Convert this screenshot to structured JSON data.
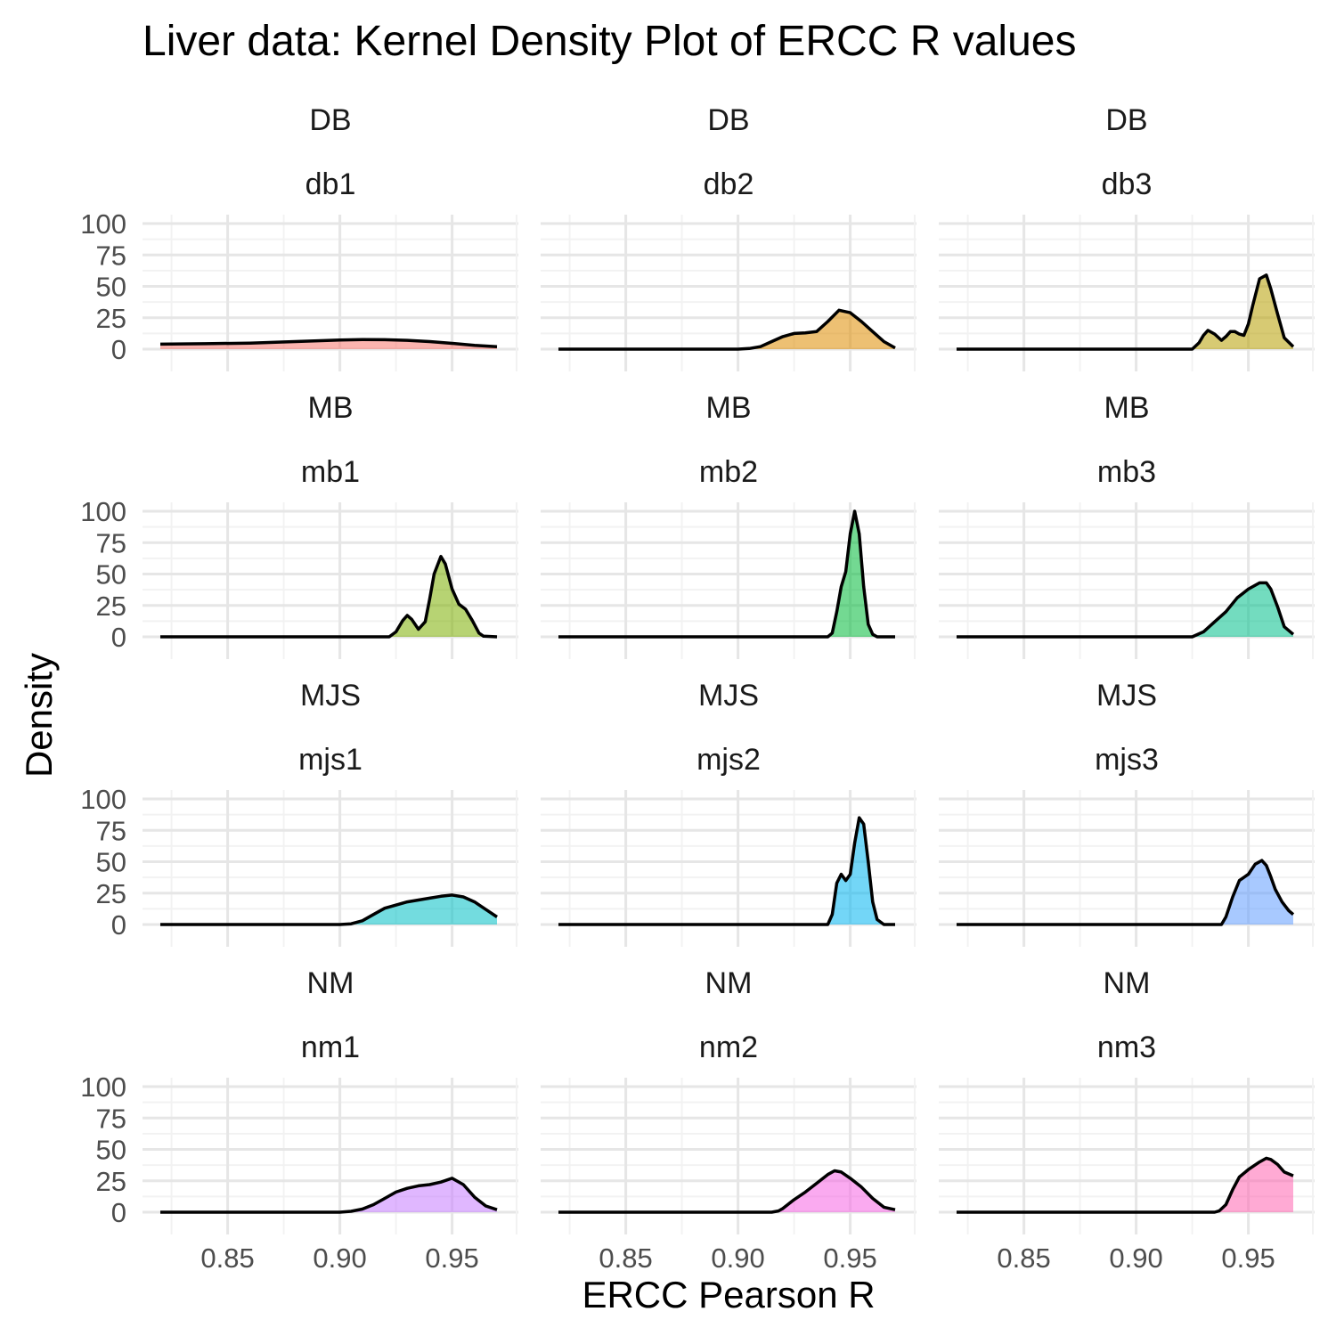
{
  "chart_data": {
    "type": "area",
    "title": "Liver data: Kernel Density Plot of ERCC R values",
    "xlabel": "ERCC Pearson R",
    "ylabel": "Density",
    "xlim": [
      0.82,
      0.97
    ],
    "ylim": [
      0,
      100
    ],
    "x_ticks": [
      0.85,
      0.9,
      0.95
    ],
    "x_tick_labels": [
      "0.85",
      "0.90",
      "0.95"
    ],
    "y_ticks": [
      0,
      25,
      50,
      75,
      100
    ],
    "y_tick_labels": [
      "0",
      "25",
      "50",
      "75",
      "100"
    ],
    "grid": true,
    "legend": "none",
    "panels": [
      {
        "group": "DB",
        "sample": "db1",
        "color": "#F8766D",
        "x": [
          0.82,
          0.84,
          0.86,
          0.88,
          0.9,
          0.91,
          0.92,
          0.93,
          0.94,
          0.95,
          0.96,
          0.97
        ],
        "y": [
          4,
          4.3,
          4.8,
          6,
          7.3,
          7.6,
          7.5,
          7,
          6,
          4.6,
          3,
          2
        ]
      },
      {
        "group": "DB",
        "sample": "db2",
        "color": "#DE8C00",
        "x": [
          0.82,
          0.9,
          0.905,
          0.91,
          0.915,
          0.92,
          0.925,
          0.93,
          0.935,
          0.94,
          0.945,
          0.95,
          0.955,
          0.96,
          0.965,
          0.97
        ],
        "y": [
          0,
          0,
          0.5,
          2,
          6,
          10,
          12.5,
          13,
          14,
          22,
          31,
          29,
          22,
          14,
          6,
          1
        ]
      },
      {
        "group": "DB",
        "sample": "db3",
        "color": "#B79F00",
        "x": [
          0.82,
          0.925,
          0.928,
          0.93,
          0.932,
          0.935,
          0.938,
          0.94,
          0.942,
          0.944,
          0.946,
          0.948,
          0.95,
          0.952,
          0.955,
          0.958,
          0.96,
          0.963,
          0.966,
          0.97
        ],
        "y": [
          0,
          0,
          5,
          11,
          15,
          12,
          7,
          10,
          14,
          14,
          12,
          11,
          20,
          35,
          56,
          59,
          48,
          28,
          9,
          2
        ]
      },
      {
        "group": "MB",
        "sample": "mb1",
        "color": "#7CAE00",
        "x": [
          0.82,
          0.922,
          0.925,
          0.928,
          0.93,
          0.932,
          0.935,
          0.938,
          0.94,
          0.942,
          0.945,
          0.947,
          0.95,
          0.953,
          0.956,
          0.959,
          0.962,
          0.964,
          0.97
        ],
        "y": [
          0,
          0,
          4,
          13,
          17,
          14,
          6,
          12,
          30,
          50,
          64,
          58,
          38,
          26,
          22,
          13,
          3,
          0.5,
          0
        ]
      },
      {
        "group": "MB",
        "sample": "mb2",
        "color": "#00BA38",
        "x": [
          0.82,
          0.94,
          0.942,
          0.944,
          0.946,
          0.948,
          0.95,
          0.952,
          0.954,
          0.956,
          0.958,
          0.96,
          0.962,
          0.97
        ],
        "y": [
          0,
          0,
          3,
          20,
          40,
          52,
          82,
          100,
          82,
          40,
          10,
          2,
          0,
          0
        ]
      },
      {
        "group": "MB",
        "sample": "mb3",
        "color": "#00C08B",
        "x": [
          0.82,
          0.925,
          0.93,
          0.935,
          0.94,
          0.945,
          0.95,
          0.955,
          0.958,
          0.96,
          0.963,
          0.966,
          0.97
        ],
        "y": [
          0,
          0,
          4,
          12,
          20,
          31,
          38,
          43,
          43,
          38,
          24,
          8,
          2
        ]
      },
      {
        "group": "MJS",
        "sample": "mjs1",
        "color": "#00BFC4",
        "x": [
          0.82,
          0.9,
          0.905,
          0.91,
          0.915,
          0.92,
          0.93,
          0.94,
          0.945,
          0.95,
          0.955,
          0.96,
          0.965,
          0.97
        ],
        "y": [
          0,
          0,
          0.6,
          3,
          8,
          13,
          18,
          21,
          22.5,
          23.5,
          22,
          18,
          12,
          6
        ]
      },
      {
        "group": "MJS",
        "sample": "mjs2",
        "color": "#00B4F0",
        "x": [
          0.82,
          0.94,
          0.942,
          0.944,
          0.946,
          0.948,
          0.95,
          0.952,
          0.954,
          0.956,
          0.958,
          0.96,
          0.962,
          0.965,
          0.97
        ],
        "y": [
          0,
          0,
          8,
          33,
          40,
          35,
          40,
          65,
          85,
          80,
          50,
          18,
          4,
          0,
          0
        ]
      },
      {
        "group": "MJS",
        "sample": "mjs3",
        "color": "#619CFF",
        "x": [
          0.82,
          0.938,
          0.94,
          0.943,
          0.946,
          0.95,
          0.953,
          0.956,
          0.958,
          0.96,
          0.962,
          0.965,
          0.968,
          0.97
        ],
        "y": [
          0,
          0,
          6,
          22,
          35,
          40,
          48,
          51,
          47,
          38,
          28,
          18,
          11,
          8
        ]
      },
      {
        "group": "NM",
        "sample": "nm1",
        "color": "#C77CFF",
        "x": [
          0.82,
          0.9,
          0.905,
          0.91,
          0.915,
          0.92,
          0.925,
          0.93,
          0.935,
          0.94,
          0.945,
          0.95,
          0.955,
          0.96,
          0.965,
          0.97
        ],
        "y": [
          0,
          0,
          0.7,
          2.5,
          6,
          11,
          16,
          19,
          21,
          22,
          24,
          27,
          22,
          12,
          5,
          2
        ]
      },
      {
        "group": "NM",
        "sample": "nm2",
        "color": "#F564E3",
        "x": [
          0.82,
          0.915,
          0.918,
          0.92,
          0.925,
          0.93,
          0.935,
          0.94,
          0.943,
          0.946,
          0.95,
          0.955,
          0.96,
          0.965,
          0.97
        ],
        "y": [
          0,
          0,
          1,
          3,
          10,
          16,
          23,
          30,
          33,
          32,
          27,
          20,
          11,
          4,
          2
        ]
      },
      {
        "group": "NM",
        "sample": "nm3",
        "color": "#FF64B0",
        "x": [
          0.82,
          0.935,
          0.937,
          0.94,
          0.943,
          0.946,
          0.95,
          0.955,
          0.958,
          0.96,
          0.963,
          0.966,
          0.97
        ],
        "y": [
          0,
          0,
          1,
          6,
          18,
          28,
          34,
          40,
          43,
          42,
          38,
          32,
          29
        ]
      }
    ]
  }
}
